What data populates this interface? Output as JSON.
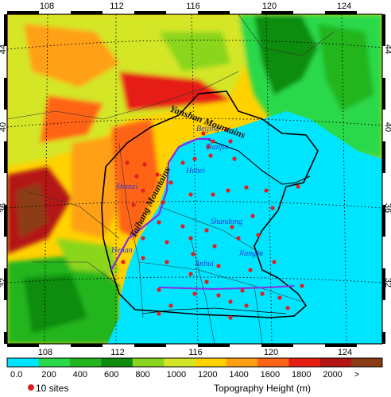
{
  "map": {
    "lon_ticks": [
      "108",
      "112",
      "116",
      "120",
      "124"
    ],
    "lat_ticks": [
      "44",
      "40",
      "36",
      "32"
    ]
  },
  "labels": {
    "provinces": [
      "Beijing",
      "Tianjin",
      "Hebei",
      "Shanxi",
      "Shandong",
      "Henan",
      "Anhui",
      "Jiangsu"
    ],
    "mountains": [
      "Yanshan Mountains",
      "Taihang Mountains"
    ]
  },
  "colorbar": {
    "ticks": [
      "0.0",
      "200",
      "400",
      "600",
      "800",
      "1000",
      "1200",
      "1400",
      "1600",
      "1800",
      "2000",
      ">"
    ],
    "colors": [
      "#00e5ff",
      "#2ad94a",
      "#22b51e",
      "#108c10",
      "#8ad61e",
      "#d4e628",
      "#ffd200",
      "#ffa014",
      "#ff6419",
      "#e61e14",
      "#b41414",
      "#8c3c14"
    ],
    "title": "Topography Height (m)"
  },
  "legend": {
    "sites_label": "10 sites",
    "site_color": "#e02020"
  }
}
